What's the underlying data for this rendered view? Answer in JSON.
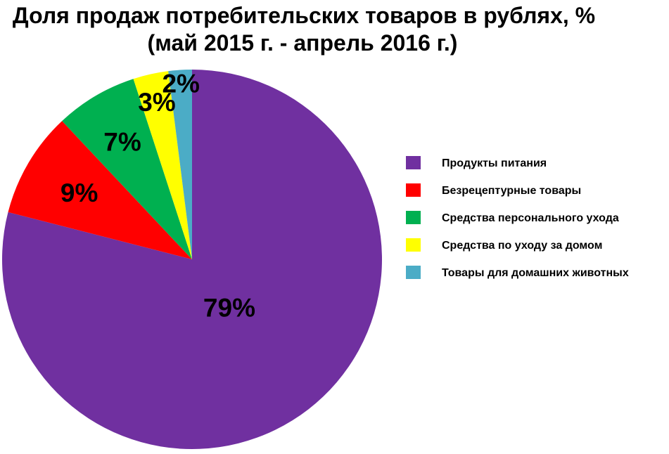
{
  "chart_data": {
    "type": "pie",
    "title": "Доля продаж потребительских товаров в рублях, %",
    "subtitle": "(май 2015 г. - апрель 2016 г.)",
    "categories": [
      "Продукты питания",
      "Безрецептурные товары",
      "Средства персонального ухода",
      "Средства по уходу за домом",
      "Товары для домашних животных"
    ],
    "values": [
      79,
      9,
      7,
      3,
      2
    ],
    "data_labels": [
      "79%",
      "9%",
      "7%",
      "3%",
      "2%"
    ],
    "colors": [
      "#7030A0",
      "#FF0000",
      "#00B050",
      "#FFFF00",
      "#4BACC6"
    ],
    "legend_position": "right"
  }
}
